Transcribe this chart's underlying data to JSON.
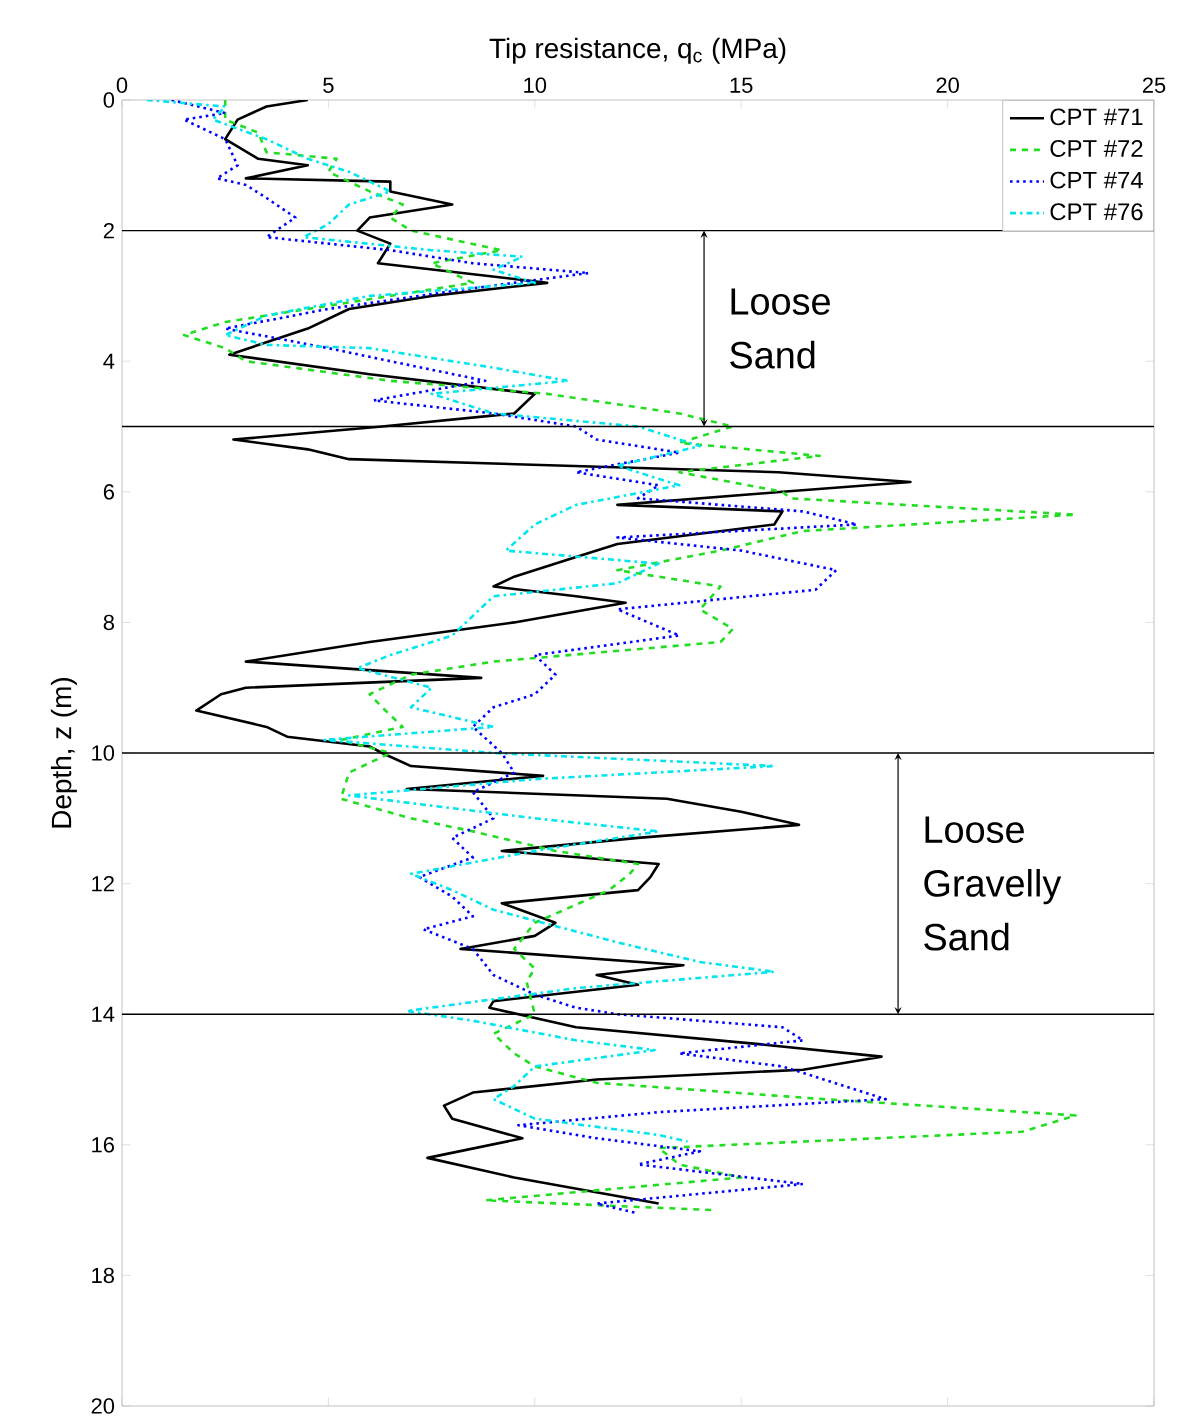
{
  "chart_data": {
    "type": "line",
    "xlabel": "Tip resistance, q$_{c}$ (MPa)",
    "ylabel": "Depth, z (m)",
    "xlim": [
      0,
      25
    ],
    "xticks": [
      0,
      5,
      10,
      15,
      20,
      25
    ],
    "ylim": [
      20,
      0
    ],
    "yticks": [
      0,
      2,
      4,
      6,
      8,
      10,
      12,
      14,
      16,
      18,
      20
    ],
    "legend": "top right",
    "ref_lines": [
      {
        "axis": "y",
        "value": 2,
        "color": "#000000"
      },
      {
        "axis": "y",
        "value": 5,
        "color": "#000000"
      },
      {
        "axis": "y",
        "value": 10,
        "color": "#000000"
      },
      {
        "axis": "y",
        "value": 14,
        "color": "#000000"
      }
    ],
    "annotations": [
      "Loose Sand",
      "Loose Gravelly Sand"
    ],
    "series": [
      {
        "name": "CPT #71",
        "color": "#000000",
        "line_style": "solid",
        "x": [
          4.5,
          3.5,
          2.8,
          2.5,
          3.3,
          4.5,
          3.0,
          6.5,
          6.5,
          8.0,
          6.0,
          5.7,
          6.5,
          6.2,
          10.3,
          7.5,
          5.5,
          4.5,
          2.6,
          6.0,
          10.0,
          9.5,
          6.3,
          2.7,
          4.5,
          5.5,
          15.9,
          19.1,
          16,
          12,
          16,
          15.8,
          12,
          11,
          9.5,
          9.0,
          11,
          12.2,
          9.5,
          6.0,
          3.0,
          8.7,
          3.0,
          2.4,
          1.8,
          3.5,
          4.0,
          6.0,
          6.3,
          7.0,
          10.2,
          6.9,
          13.2,
          15,
          16.4,
          12.5,
          9.2,
          13,
          12.8,
          12.5,
          9.2,
          10.5,
          10,
          8.2,
          13.6,
          11.5,
          12.5,
          9,
          8.9,
          11,
          15.3,
          18.4,
          16.5,
          11.5,
          8.5,
          7.8,
          8.0,
          9.7,
          7.4,
          9.5,
          13.0
        ],
        "values": [
          0,
          0.1,
          0.3,
          0.6,
          0.9,
          1.0,
          1.2,
          1.25,
          1.4,
          1.6,
          1.8,
          2.0,
          2.2,
          2.5,
          2.8,
          3.0,
          3.2,
          3.5,
          3.9,
          4.2,
          4.5,
          4.8,
          5.0,
          5.2,
          5.35,
          5.5,
          5.7,
          5.85,
          6.0,
          6.2,
          6.3,
          6.5,
          6.8,
          7.0,
          7.3,
          7.45,
          7.6,
          7.7,
          8.0,
          8.3,
          8.6,
          8.85,
          9.0,
          9.1,
          9.35,
          9.6,
          9.75,
          9.9,
          10.0,
          10.2,
          10.35,
          10.55,
          10.7,
          10.9,
          11.1,
          11.3,
          11.5,
          11.7,
          11.9,
          12.1,
          12.3,
          12.6,
          12.8,
          13.0,
          13.25,
          13.4,
          13.55,
          13.8,
          13.9,
          14.2,
          14.45,
          14.65,
          14.85,
          15.0,
          15.2,
          15.4,
          15.6,
          15.9,
          16.2,
          16.5,
          16.9
        ]
      },
      {
        "name": "CPT #72",
        "color": "#22dd22",
        "line_style": "dashed",
        "x": [
          2.5,
          2.5,
          3.3,
          3.5,
          5.2,
          5.0,
          6.0,
          6.8,
          6.5,
          7.0,
          9.2,
          7.5,
          8.5,
          5.5,
          2.5,
          1.5,
          2.5,
          3.0,
          6.5,
          10.3,
          13.5,
          14.8,
          13.5,
          16.9,
          13.5,
          16,
          16.2,
          23.1,
          16.5,
          14.5,
          12.0,
          14.5,
          14,
          14.8,
          14.5,
          9,
          7,
          6.0,
          6.3,
          6.8,
          5.3,
          6.5,
          5.5,
          5.3,
          7,
          8.5,
          10.5,
          12.5,
          12.3,
          11.8,
          10,
          9.5,
          10.0,
          9.8,
          10,
          9,
          9.5,
          10,
          11.5,
          17,
          23.1,
          21.8,
          13,
          13.5,
          15,
          8.8,
          14.3
        ],
        "values": [
          0,
          0.3,
          0.5,
          0.8,
          0.9,
          1.1,
          1.4,
          1.6,
          1.8,
          2.0,
          2.3,
          2.5,
          2.8,
          3.1,
          3.4,
          3.6,
          3.8,
          4.0,
          4.3,
          4.5,
          4.8,
          5.0,
          5.25,
          5.45,
          5.7,
          6.0,
          6.1,
          6.35,
          6.6,
          6.9,
          7.2,
          7.45,
          7.8,
          8.1,
          8.3,
          8.6,
          8.8,
          9.1,
          9.3,
          9.6,
          9.8,
          10.0,
          10.3,
          10.7,
          11.0,
          11.2,
          11.5,
          11.7,
          11.85,
          12.1,
          12.6,
          13.0,
          13.3,
          13.5,
          14.0,
          14.3,
          14.6,
          14.8,
          15.05,
          15.3,
          15.55,
          15.8,
          16.05,
          16.3,
          16.5,
          16.85,
          17.0
        ]
      },
      {
        "name": "CPT #74",
        "color": "#0000ff",
        "line_style": "dotted",
        "x": [
          1.2,
          2.5,
          1.5,
          2.5,
          2.8,
          2.3,
          3.0,
          3.5,
          4.2,
          3.5,
          6.5,
          8.5,
          11.3,
          8.3,
          5.0,
          2.5,
          5.0,
          6.5,
          8.8,
          6.1,
          9.0,
          11.0,
          11.5,
          13.5,
          11,
          13,
          12.5,
          16.5,
          17.8,
          12.0,
          15.0,
          17.3,
          16.8,
          12.0,
          13.5,
          10.0,
          10.5,
          10.0,
          9.0,
          8.5,
          9.2,
          9.5,
          8.5,
          9,
          8.0,
          8.5,
          7.2,
          8.0,
          8.5,
          7.3,
          8.5,
          9.0,
          10.0,
          11,
          12,
          16,
          16.5,
          13.5,
          16,
          17,
          18.5,
          13,
          9.6,
          11.5,
          14,
          12.5,
          16.5,
          11.5,
          12.5
        ],
        "values": [
          0,
          0.2,
          0.3,
          0.6,
          1.0,
          1.2,
          1.3,
          1.5,
          1.8,
          2.1,
          2.3,
          2.5,
          2.65,
          2.9,
          3.2,
          3.5,
          3.8,
          4.0,
          4.3,
          4.6,
          4.8,
          5.0,
          5.2,
          5.4,
          5.7,
          5.9,
          6.1,
          6.3,
          6.5,
          6.7,
          6.9,
          7.2,
          7.5,
          7.8,
          8.2,
          8.5,
          8.8,
          9.1,
          9.3,
          9.6,
          10.0,
          10.3,
          10.6,
          11.0,
          11.3,
          11.6,
          11.9,
          12.2,
          12.5,
          12.7,
          13.0,
          13.4,
          13.7,
          13.9,
          14.0,
          14.2,
          14.4,
          14.6,
          14.8,
          15.0,
          15.3,
          15.5,
          15.7,
          15.9,
          16.1,
          16.3,
          16.6,
          16.9,
          17.05
        ]
      },
      {
        "name": "CPT #76",
        "color": "#00e5ee",
        "line_style": "dashdot",
        "x": [
          0.6,
          2.5,
          2.2,
          3.5,
          4.5,
          5.5,
          6.5,
          5.5,
          5.0,
          4.4,
          7.5,
          9.7,
          9.0,
          10.0,
          6.0,
          3.5,
          2.5,
          3.5,
          6.0,
          9.0,
          10.8,
          7.5,
          9,
          12.5,
          14.0,
          12,
          13.5,
          11,
          10,
          9.3,
          13,
          12,
          9.0,
          8.5,
          8.0,
          6.5,
          5.7,
          7.5,
          7.0,
          9.0,
          4.9,
          9.0,
          15.8,
          10,
          5.5,
          10,
          13.0,
          10,
          7.0,
          8,
          9,
          12,
          14,
          15.8,
          11,
          6.9,
          8.5,
          11,
          12.9,
          10.0,
          9.5,
          9.0,
          10,
          13,
          13.7
        ],
        "values": [
          0,
          0.1,
          0.3,
          0.6,
          0.9,
          1.1,
          1.4,
          1.6,
          1.9,
          2.1,
          2.3,
          2.4,
          2.6,
          2.8,
          3.0,
          3.3,
          3.6,
          3.75,
          3.8,
          4.1,
          4.3,
          4.5,
          4.8,
          5.0,
          5.3,
          5.6,
          5.9,
          6.2,
          6.5,
          6.9,
          7.1,
          7.4,
          7.6,
          7.9,
          8.2,
          8.5,
          8.7,
          9.0,
          9.3,
          9.6,
          9.8,
          10.0,
          10.2,
          10.4,
          10.65,
          11.0,
          11.2,
          11.5,
          11.85,
          12.1,
          12.4,
          12.9,
          13.2,
          13.35,
          13.6,
          13.95,
          14.1,
          14.4,
          14.55,
          14.8,
          15.1,
          15.3,
          15.6,
          15.85,
          15.95
        ]
      }
    ]
  }
}
